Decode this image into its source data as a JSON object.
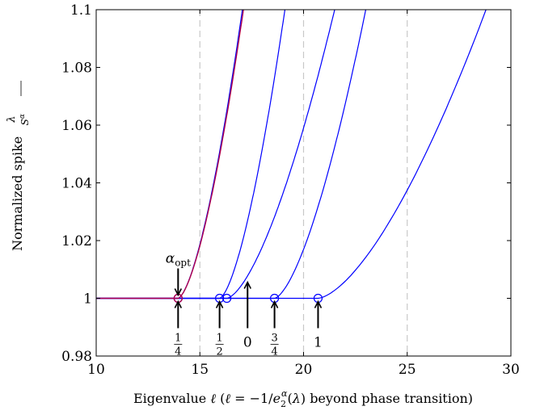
{
  "chart_data": {
    "type": "line",
    "xlabel": "Eigenvalue ℓ (ℓ = −1/e₂ᵅ(λ) beyond phase transition)",
    "ylabel": "Normalized spike λ/Sᵅ",
    "xlim": [
      10,
      30
    ],
    "ylim": [
      0.98,
      1.1
    ],
    "x_ticks": [
      10,
      15,
      20,
      25,
      30
    ],
    "x_tick_labels": [
      "10",
      "15",
      "20",
      "25",
      "30"
    ],
    "y_ticks": [
      0.98,
      1.0,
      1.02,
      1.04,
      1.06,
      1.08,
      1.1
    ],
    "y_tick_labels": [
      "0.98",
      "1",
      "1.02",
      "1.04",
      "1.06",
      "1.08",
      "1.1"
    ],
    "vertical_dashed_lines": [
      15,
      20,
      25
    ],
    "grid": false,
    "legend": "none",
    "colors": {
      "alpha_curves": "#0000ff",
      "optimal_curve": "#b0004b",
      "guides": "#c8c8c8"
    },
    "plateau_value": 1.0,
    "curve_shape": "y = 1 for x ≤ x0, then rises; y = 1.1 at x1",
    "series": [
      {
        "name": "1/4",
        "x0": 13.95,
        "x1": 17.05,
        "x_marker": 13.95
      },
      {
        "name": "1/2",
        "x0": 15.95,
        "x1": 19.1,
        "x_marker": 15.95
      },
      {
        "name": "0",
        "x0": 16.3,
        "x1": 21.5,
        "x_marker": 16.3
      },
      {
        "name": "3/4",
        "x0": 18.6,
        "x1": 23.0,
        "x_marker": 18.6
      },
      {
        "name": "1",
        "x0": 20.7,
        "x1": 28.8,
        "x_marker": 20.7
      }
    ],
    "optimal_curve": {
      "name": "α_opt",
      "x0": 13.95,
      "x1": 17.1,
      "x_marker": 13.95
    },
    "annotations": [
      {
        "text": "α_opt",
        "x": 13.95,
        "arrow": "down"
      },
      {
        "text": "1/4",
        "x": 13.95,
        "arrow": "up"
      },
      {
        "text": "1/2",
        "x": 15.95,
        "arrow": "up"
      },
      {
        "text": "0",
        "x": 17.3,
        "arrow": "up"
      },
      {
        "text": "3/4",
        "x": 18.6,
        "arrow": "up"
      },
      {
        "text": "1",
        "x": 20.7,
        "arrow": "up"
      }
    ]
  }
}
